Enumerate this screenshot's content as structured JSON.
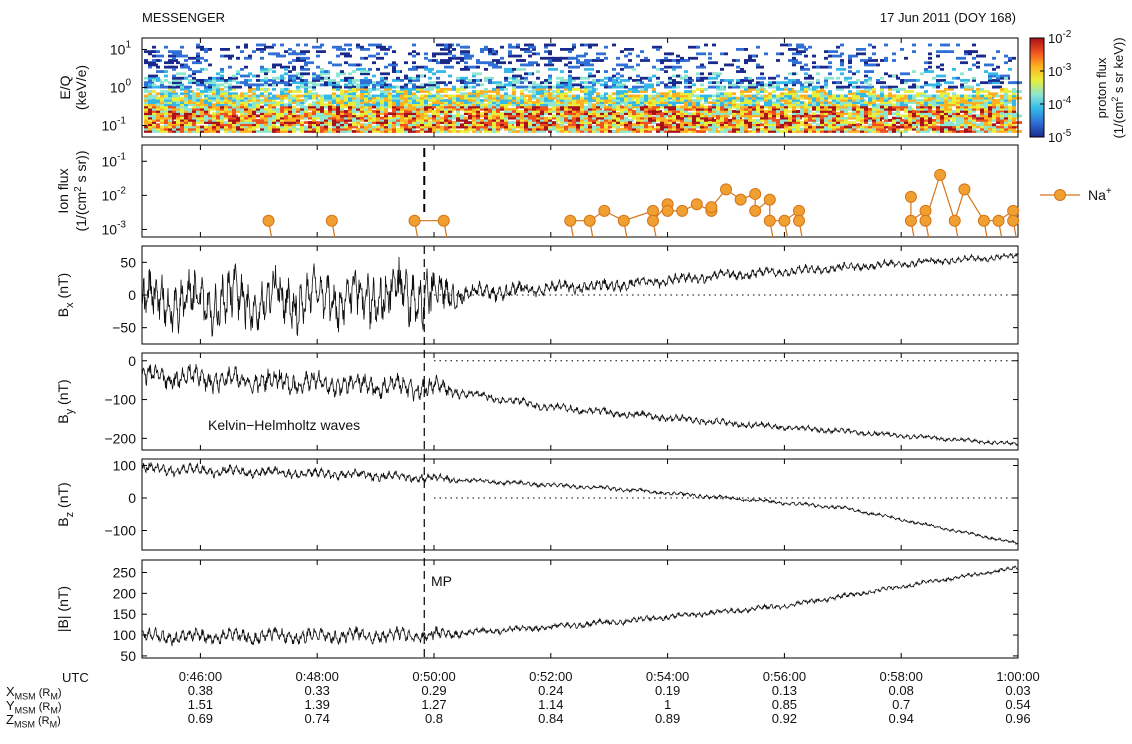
{
  "header": {
    "left_title": "MESSENGER",
    "right_title": "17 Jun 2011 (DOY 168)"
  },
  "chart_data": [
    {
      "type": "heatmap",
      "panel": "spectrogram",
      "ylabel": [
        "E/Q",
        "(keV/e)"
      ],
      "yscale": "log",
      "ylim": [
        0.05,
        20
      ],
      "yticks": [
        {
          "base": "10",
          "exp": "1",
          "value": 10
        },
        {
          "base": "10",
          "exp": "0",
          "value": 1
        },
        {
          "base": "10",
          "exp": "-1",
          "value": 0.1
        }
      ],
      "colorbar": {
        "label": [
          "proton flux",
          "(1/(cm",
          "2",
          " s sr keV))"
        ],
        "scale": "log",
        "range": [
          1e-05,
          0.01
        ],
        "ticks": [
          {
            "base": "10",
            "exp": "-2"
          },
          {
            "base": "10",
            "exp": "-3"
          },
          {
            "base": "10",
            "exp": "-4"
          },
          {
            "base": "10",
            "exp": "-5"
          }
        ],
        "colors": [
          "#1a2a8c",
          "#2f6fd6",
          "#33b8e8",
          "#8de6d0",
          "#e8ef3a",
          "#ffb020",
          "#f05020",
          "#a8101a"
        ]
      },
      "features": "dense low-energy flux (0.1–0.5 keV/e) high throughout; sparse high-energy scans up to ~15 keV/e"
    },
    {
      "type": "scatter",
      "panel": "ion_flux",
      "ylabel": [
        "Ion flux",
        "(1/(cm",
        "2",
        " s sr))"
      ],
      "yscale": "log",
      "ylim": [
        0.0006,
        0.3
      ],
      "yticks": [
        {
          "base": "10",
          "exp": "-1",
          "value": 0.1
        },
        {
          "base": "10",
          "exp": "-2",
          "value": 0.01
        },
        {
          "base": "10",
          "exp": "-3",
          "value": 0.001
        }
      ],
      "legend": {
        "label": "Na",
        "sup": "+",
        "position": "right"
      },
      "marker_color": "#f0a030",
      "line_color": "#d5741a",
      "series": [
        {
          "x": [
            "0:47:10",
            "0:48:15",
            "0:49:40",
            "0:50:10",
            "0:52:20",
            "0:52:40",
            "0:52:55",
            "0:53:15",
            "0:53:45",
            "0:53:45",
            "0:54:00",
            "0:54:00",
            "0:54:15",
            "0:54:30",
            "0:54:45",
            "0:54:45",
            "0:55:00",
            "0:55:15",
            "0:55:30",
            "0:55:30",
            "0:55:45",
            "0:55:45",
            "0:56:00",
            "0:56:15",
            "0:56:15",
            "0:58:10",
            "0:58:10",
            "0:58:25",
            "0:58:25",
            "0:58:40",
            "0:58:55",
            "0:59:05",
            "0:59:25",
            "0:59:40",
            "0:59:55",
            "0:59:55"
          ],
          "y": [
            0.0018,
            0.0018,
            0.0018,
            0.0018,
            0.0018,
            0.0018,
            0.0035,
            0.0018,
            0.0035,
            0.0018,
            0.0055,
            0.0035,
            0.0035,
            0.0055,
            0.0035,
            0.0045,
            0.015,
            0.0075,
            0.011,
            0.0035,
            0.0075,
            0.0018,
            0.0018,
            0.0035,
            0.0018,
            0.009,
            0.0018,
            0.0035,
            0.0018,
            0.04,
            0.0018,
            0.015,
            0.0018,
            0.0018,
            0.0035,
            0.0018
          ]
        }
      ]
    },
    {
      "type": "line",
      "panel": "Bx",
      "ylabel_main": "B",
      "ylabel_sub": "x",
      "ylabel_unit": "(nT)",
      "ylim": [
        -75,
        75
      ],
      "yticks": [
        50,
        0,
        -50
      ],
      "zero_line": true,
      "x_range": [
        "0:45:00",
        "1:00:00"
      ],
      "series": [
        {
          "trend_x_min": [
            0,
            5,
            8,
            10,
            15
          ],
          "trend_y": [
            -10,
            0,
            15,
            30,
            60
          ],
          "noise_y": [
            [
              0,
              35
            ],
            [
              5,
              40
            ],
            [
              5.5,
              12
            ],
            [
              8,
              8
            ],
            [
              15,
              4
            ]
          ]
        }
      ]
    },
    {
      "type": "line",
      "panel": "By",
      "ylabel_main": "B",
      "ylabel_sub": "y",
      "ylabel_unit": "(nT)",
      "ylim": [
        -230,
        20
      ],
      "yticks": [
        0,
        -100,
        -200
      ],
      "zero_line": true,
      "annotation": "Kelvin−Helmholtz waves",
      "x_range": [
        "0:45:00",
        "1:00:00"
      ],
      "series": [
        {
          "trend_x_min": [
            0,
            5,
            7,
            10,
            15
          ],
          "trend_y": [
            -40,
            -70,
            -120,
            -160,
            -215
          ],
          "noise_y": [
            [
              0,
              25
            ],
            [
              5,
              25
            ],
            [
              5.5,
              10
            ],
            [
              15,
              4
            ]
          ]
        }
      ]
    },
    {
      "type": "line",
      "panel": "Bz",
      "ylabel_main": "B",
      "ylabel_sub": "z",
      "ylabel_unit": "(nT)",
      "ylim": [
        -160,
        120
      ],
      "yticks": [
        100,
        0,
        -100
      ],
      "zero_line": true,
      "x_range": [
        "0:45:00",
        "1:00:00"
      ],
      "series": [
        {
          "trend_x_min": [
            0,
            4,
            8,
            12,
            15
          ],
          "trend_y": [
            90,
            70,
            30,
            -30,
            -140
          ],
          "noise_y": [
            [
              0,
              15
            ],
            [
              5,
              12
            ],
            [
              5.5,
              6
            ],
            [
              15,
              4
            ]
          ]
        }
      ]
    },
    {
      "type": "line",
      "panel": "Bmag",
      "ylabel_main": "|B|",
      "ylabel_unit": "(nT)",
      "ylim": [
        45,
        280
      ],
      "yticks": [
        250,
        200,
        150,
        100,
        50
      ],
      "annotation": "MP",
      "x_range": [
        "0:45:00",
        "1:00:00"
      ],
      "series": [
        {
          "trend_x_min": [
            0,
            5,
            8,
            11,
            15
          ],
          "trend_y": [
            95,
            100,
            130,
            170,
            262
          ],
          "noise_y": [
            [
              0,
              15
            ],
            [
              5,
              15
            ],
            [
              5.5,
              7
            ],
            [
              15,
              4
            ]
          ]
        }
      ]
    }
  ],
  "time_axis": {
    "start": "0:45:00",
    "end": "1:00:00",
    "ticks": [
      "0:46:00",
      "0:48:00",
      "0:50:00",
      "0:52:00",
      "0:54:00",
      "0:56:00",
      "0:58:00",
      "1:00:00"
    ],
    "marker_time": "0:49:50"
  },
  "ephemeris": {
    "rows": [
      {
        "label": "UTC",
        "main": "",
        "sub": "",
        "unit_main": "",
        "unit_sub": "",
        "values": [
          "0:46:00",
          "0:48:00",
          "0:50:00",
          "0:52:00",
          "0:54:00",
          "0:56:00",
          "0:58:00",
          "1:00:00"
        ]
      },
      {
        "label": "X",
        "main": "X",
        "sub": "MSM",
        "unit_main": "(R",
        "unit_sub": "M",
        "values": [
          "0.38",
          "0.33",
          "0.29",
          "0.24",
          "0.19",
          "0.13",
          "0.08",
          "0.03"
        ]
      },
      {
        "label": "Y",
        "main": "Y",
        "sub": "MSM",
        "unit_main": "(R",
        "unit_sub": "M",
        "values": [
          "1.51",
          "1.39",
          "1.27",
          "1.14",
          "1",
          "0.85",
          "0.7",
          "0.54"
        ]
      },
      {
        "label": "Z",
        "main": "Z",
        "sub": "MSM",
        "unit_main": "(R",
        "unit_sub": "M",
        "values": [
          "0.69",
          "0.74",
          "0.8",
          "0.84",
          "0.89",
          "0.92",
          "0.94",
          "0.96"
        ]
      }
    ]
  }
}
